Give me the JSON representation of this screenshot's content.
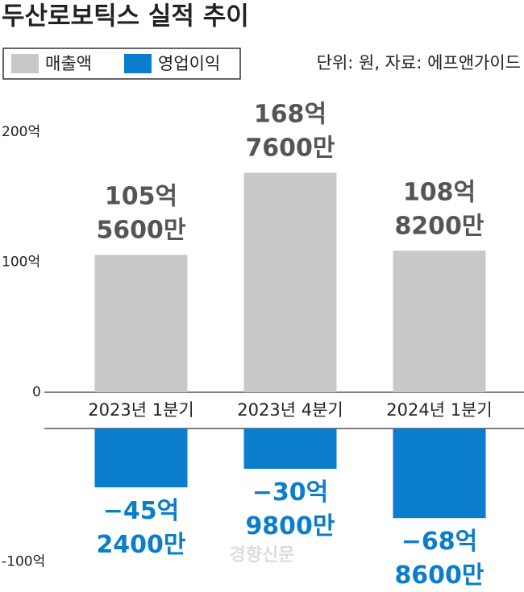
{
  "chart_data": {
    "type": "bar",
    "title": "두산로보틱스 실적 추이",
    "note": "단위: 원, 자료: 에프앤가이드",
    "watermark": "경향신문",
    "categories": [
      "2023년 1분기",
      "2023년 4분기",
      "2024년 1분기"
    ],
    "series": [
      {
        "name": "매출액",
        "color": "#c8c8c8",
        "values": [
          105.56,
          168.76,
          108.82
        ],
        "value_labels": [
          "105억 5600만",
          "168억 7600만",
          "108억 8200만"
        ]
      },
      {
        "name": "영업이익",
        "color": "#0a7dcc",
        "values": [
          -45.24,
          -30.98,
          -68.86
        ],
        "value_labels": [
          "−45억 2400만",
          "−30억 9800만",
          "−68억 8600만"
        ]
      }
    ],
    "ylim": [
      -100,
      200
    ],
    "yticks": [
      {
        "value": 200,
        "label": "200억"
      },
      {
        "value": 100,
        "label": "100억"
      },
      0,
      {
        "value": -100,
        "label": "-100억"
      }
    ]
  }
}
